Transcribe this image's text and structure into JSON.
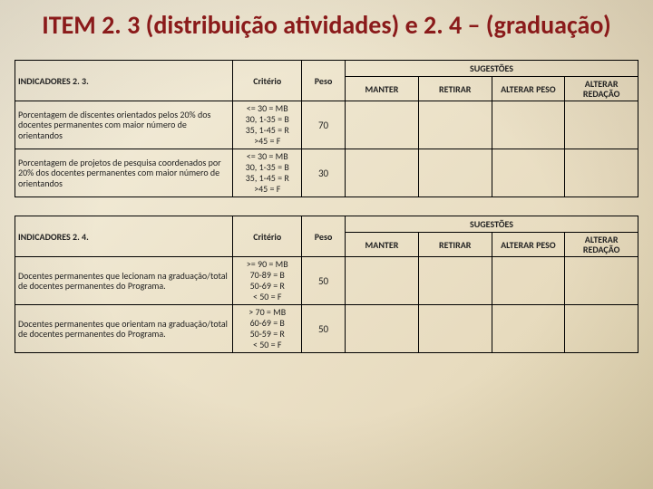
{
  "title": "ITEM 2. 3 (distribuição atividades) e 2. 4 – (graduação)",
  "tables": [
    {
      "headerIndicator": "INDICADORES 2. 3.",
      "headerCriterio": "Critério",
      "headerPeso": "Peso",
      "sugestoesTop": "SUGESTÕES",
      "sugCols": [
        "MANTER",
        "RETIRAR",
        "ALTERAR PESO",
        "ALTERAR REDAÇÃO"
      ],
      "rows": [
        {
          "ind": "Porcentagem de discentes orientados pelos 20% dos docentes permanentes com maior número de orientandos",
          "crit": "<= 30 = MB\n30, 1-35 = B\n35, 1-45 = R\n>45 = F",
          "peso": "70"
        },
        {
          "ind": "Porcentagem de projetos de pesquisa coordenados por 20% dos docentes permanentes com maior número de orientandos",
          "crit": "<= 30 = MB\n30, 1-35 = B\n35, 1-45 = R\n>45 = F",
          "peso": "30"
        }
      ]
    },
    {
      "headerIndicator": "INDICADORES 2. 4.",
      "headerCriterio": "Critério",
      "headerPeso": "Peso",
      "sugestoesTop": "SUGESTÕES",
      "sugCols": [
        "MANTER",
        "RETIRAR",
        "ALTERAR PESO",
        "ALTERAR REDAÇÃO"
      ],
      "rows": [
        {
          "ind": "Docentes permanentes que lecionam na graduação/total de docentes permanentes do Programa.",
          "crit": ">= 90 = MB\n70-89 = B\n50-69 = R\n< 50 = F",
          "peso": "50"
        },
        {
          "ind": "Docentes permanentes que orientam na graduação/total de docentes permanentes do Programa.",
          "crit": "> 70 = MB\n60-69 = B\n50-59 = R\n< 50 = F",
          "peso": "50"
        }
      ]
    }
  ],
  "style": {
    "title_color": "#8a1a1a",
    "title_fontsize": 28,
    "border_color": "#000000",
    "background_gradient": [
      "#f5f0e0",
      "#e0d4b0"
    ],
    "table_fontsize": 10
  }
}
